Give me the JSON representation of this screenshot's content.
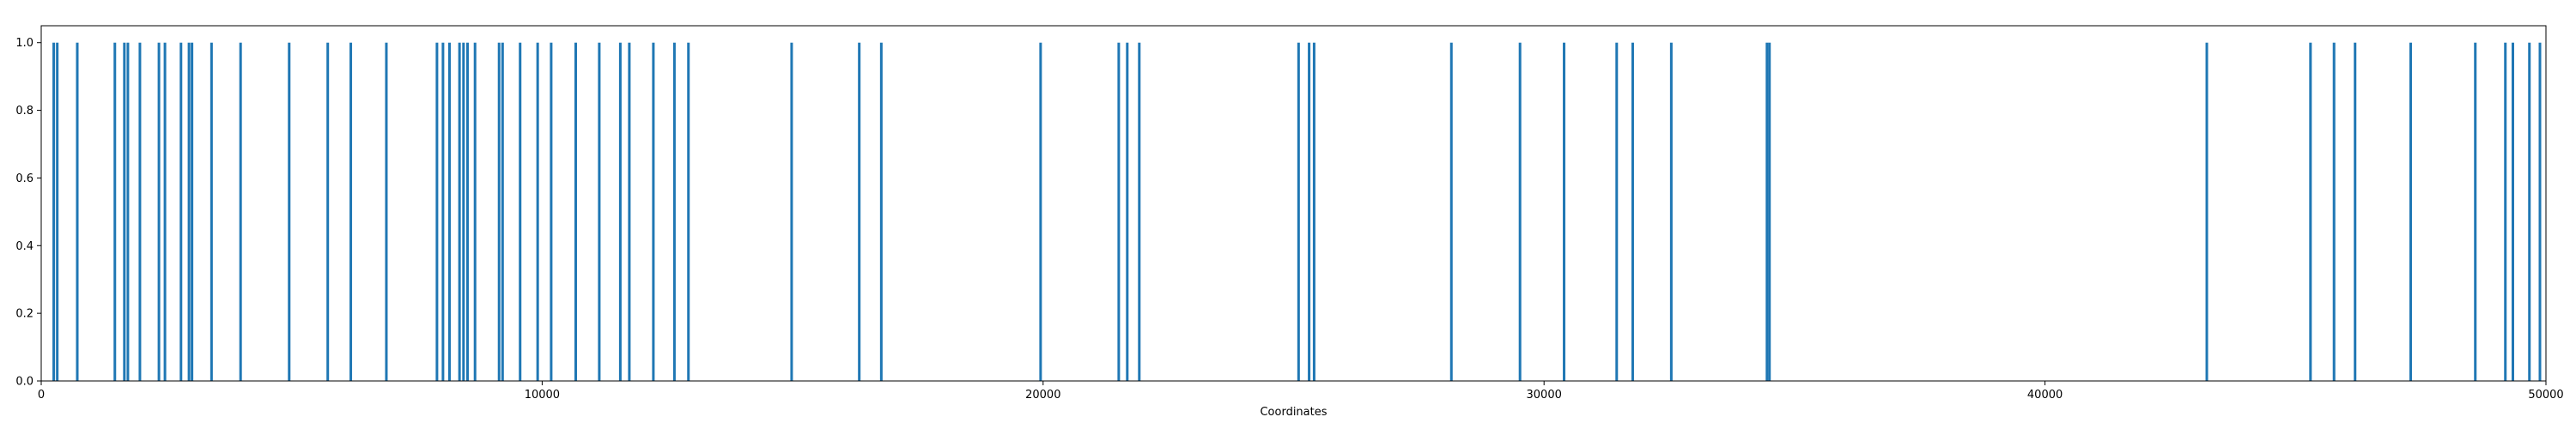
{
  "chart_data": {
    "type": "bar",
    "title": "",
    "xlabel": "Coordinates",
    "ylabel": "",
    "xlim": [
      0,
      50000
    ],
    "ylim": [
      0,
      1.05
    ],
    "grid": false,
    "bar_color": "#1f77b4",
    "xticks": [
      0,
      10000,
      20000,
      30000,
      40000,
      50000
    ],
    "yticks": [
      0.0,
      0.2,
      0.4,
      0.6,
      0.8,
      1.0
    ],
    "xtick_labels": [
      "0",
      "10000",
      "20000",
      "30000",
      "40000",
      "50000"
    ],
    "ytick_labels": [
      "0.0",
      "0.2",
      "0.4",
      "0.6",
      "0.8",
      "1.0"
    ],
    "x": [
      250,
      320,
      720,
      1470,
      1660,
      1730,
      1970,
      2350,
      2470,
      2790,
      2950,
      3010,
      3400,
      3980,
      4950,
      5720,
      6180,
      6890,
      7900,
      8020,
      8150,
      8350,
      8430,
      8510,
      8660,
      9140,
      9210,
      9560,
      9910,
      10180,
      10670,
      11140,
      11560,
      11740,
      12220,
      12640,
      12920,
      14980,
      16330,
      16770,
      19950,
      21510,
      21680,
      21920,
      25100,
      25310,
      25410,
      28150,
      29520,
      30400,
      31450,
      31770,
      32540,
      34450,
      34500,
      43230,
      45300,
      45770,
      46190,
      47300,
      48590,
      49190,
      49340,
      49670,
      49880
    ],
    "values": [
      1,
      1,
      1,
      1,
      1,
      1,
      1,
      1,
      1,
      1,
      1,
      1,
      1,
      1,
      1,
      1,
      1,
      1,
      1,
      1,
      1,
      1,
      1,
      1,
      1,
      1,
      1,
      1,
      1,
      1,
      1,
      1,
      1,
      1,
      1,
      1,
      1,
      1,
      1,
      1,
      1,
      1,
      1,
      1,
      1,
      1,
      1,
      1,
      1,
      1,
      1,
      1,
      1,
      1,
      1,
      1,
      1,
      1,
      1,
      1,
      1,
      1,
      1,
      1,
      1
    ]
  }
}
